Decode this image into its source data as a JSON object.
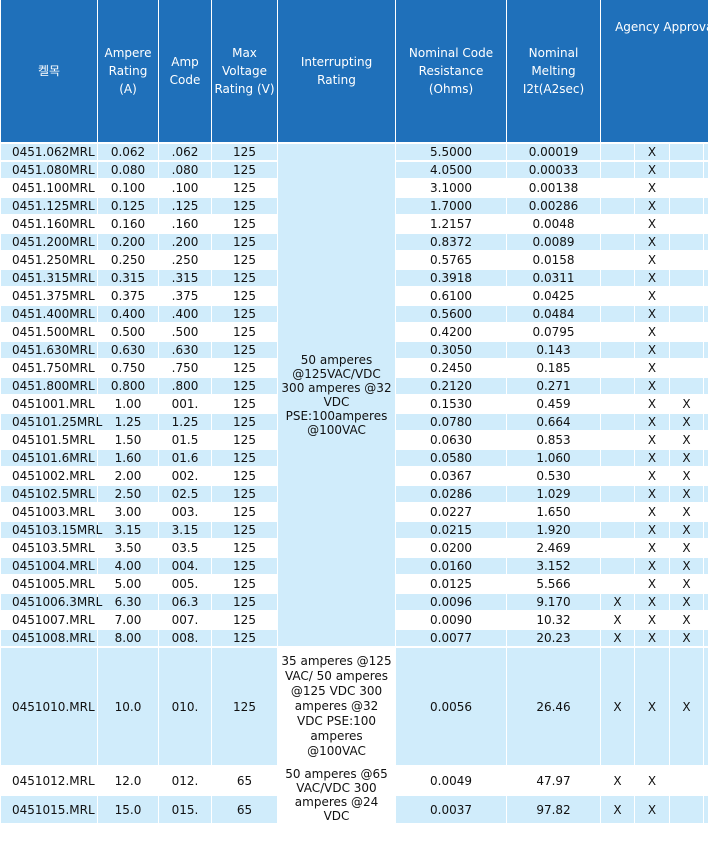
{
  "headers": {
    "part": "켈목",
    "ampere_rating": "Ampere Rating (A)",
    "amp_code": "Amp Code",
    "max_voltage": "Max Voltage Rating (V)",
    "interrupting": "Interrupting Rating",
    "resistance": "Nominal Code Resistance (Ohms)",
    "melting": "Nominal Melting I2t(A2sec)",
    "agency": "Agency Approvals"
  },
  "interrupting_ratings": [
    "50 amperes @125VAC/VDC 300 amperes @32 VDC PSE:100amperes @100VAC",
    "35 amperes @125 VAC/ 50 amperes @125 VDC 300 amperes @32 VDC PSE:100 amperes @100VAC",
    "50 amperes @65 VAC/VDC 300 amperes @24 VDC"
  ],
  "rows": [
    {
      "part": "0451.062MRL",
      "ampere": "0.062",
      "code": ".062",
      "voltage": "125",
      "resistance": "5.5000",
      "melting": "0.00019",
      "a1": "",
      "a2": "X",
      "a3": "",
      "a4": "X"
    },
    {
      "part": "0451.080MRL",
      "ampere": "0.080",
      "code": ".080",
      "voltage": "125",
      "resistance": "4.0500",
      "melting": "0.00033",
      "a1": "",
      "a2": "X",
      "a3": "",
      "a4": "X"
    },
    {
      "part": "0451.100MRL",
      "ampere": "0.100",
      "code": ".100",
      "voltage": "125",
      "resistance": "3.1000",
      "melting": "0.00138",
      "a1": "",
      "a2": "X",
      "a3": "",
      "a4": "X"
    },
    {
      "part": "0451.125MRL",
      "ampere": "0.125",
      "code": ".125",
      "voltage": "125",
      "resistance": "1.7000",
      "melting": "0.00286",
      "a1": "",
      "a2": "X",
      "a3": "",
      "a4": "X"
    },
    {
      "part": "0451.160MRL",
      "ampere": "0.160",
      "code": ".160",
      "voltage": "125",
      "resistance": "1.2157",
      "melting": "0.0048",
      "a1": "",
      "a2": "X",
      "a3": "",
      "a4": "X"
    },
    {
      "part": "0451.200MRL",
      "ampere": "0.200",
      "code": ".200",
      "voltage": "125",
      "resistance": "0.8372",
      "melting": "0.0089",
      "a1": "",
      "a2": "X",
      "a3": "",
      "a4": "X"
    },
    {
      "part": "0451.250MRL",
      "ampere": "0.250",
      "code": ".250",
      "voltage": "125",
      "resistance": "0.5765",
      "melting": "0.0158",
      "a1": "",
      "a2": "X",
      "a3": "",
      "a4": "X"
    },
    {
      "part": "0451.315MRL",
      "ampere": "0.315",
      "code": ".315",
      "voltage": "125",
      "resistance": "0.3918",
      "melting": "0.0311",
      "a1": "",
      "a2": "X",
      "a3": "",
      "a4": "X"
    },
    {
      "part": "0451.375MRL",
      "ampere": "0.375",
      "code": ".375",
      "voltage": "125",
      "resistance": "0.6100",
      "melting": "0.0425",
      "a1": "",
      "a2": "X",
      "a3": "",
      "a4": "X"
    },
    {
      "part": "0451.400MRL",
      "ampere": "0.400",
      "code": ".400",
      "voltage": "125",
      "resistance": "0.5600",
      "melting": "0.0484",
      "a1": "",
      "a2": "X",
      "a3": "",
      "a4": "X"
    },
    {
      "part": "0451.500MRL",
      "ampere": "0.500",
      "code": ".500",
      "voltage": "125",
      "resistance": "0.4200",
      "melting": "0.0795",
      "a1": "",
      "a2": "X",
      "a3": "",
      "a4": "X"
    },
    {
      "part": "0451.630MRL",
      "ampere": "0.630",
      "code": ".630",
      "voltage": "125",
      "resistance": "0.3050",
      "melting": "0.143",
      "a1": "",
      "a2": "X",
      "a3": "",
      "a4": "X"
    },
    {
      "part": "0451.750MRL",
      "ampere": "0.750",
      "code": ".750",
      "voltage": "125",
      "resistance": "0.2450",
      "melting": "0.185",
      "a1": "",
      "a2": "X",
      "a3": "",
      "a4": "X"
    },
    {
      "part": "0451.800MRL",
      "ampere": "0.800",
      "code": ".800",
      "voltage": "125",
      "resistance": "0.2120",
      "melting": "0.271",
      "a1": "",
      "a2": "X",
      "a3": "",
      "a4": "X"
    },
    {
      "part": "0451001.MRL",
      "ampere": "1.00",
      "code": "001.",
      "voltage": "125",
      "resistance": "0.1530",
      "melting": "0.459",
      "a1": "",
      "a2": "X",
      "a3": "X",
      "a4": "X"
    },
    {
      "part": "045101.25MRL",
      "ampere": "1.25",
      "code": "1.25",
      "voltage": "125",
      "resistance": "0.0780",
      "melting": "0.664",
      "a1": "",
      "a2": "X",
      "a3": "X",
      "a4": "X"
    },
    {
      "part": "045101.5MRL",
      "ampere": "1.50",
      "code": "01.5",
      "voltage": "125",
      "resistance": "0.0630",
      "melting": "0.853",
      "a1": "",
      "a2": "X",
      "a3": "X",
      "a4": "X"
    },
    {
      "part": "045101.6MRL",
      "ampere": "1.60",
      "code": "01.6",
      "voltage": "125",
      "resistance": "0.0580",
      "melting": "1.060",
      "a1": "",
      "a2": "X",
      "a3": "X",
      "a4": "X"
    },
    {
      "part": "0451002.MRL",
      "ampere": "2.00",
      "code": "002.",
      "voltage": "125",
      "resistance": "0.0367",
      "melting": "0.530",
      "a1": "",
      "a2": "X",
      "a3": "X",
      "a4": "X"
    },
    {
      "part": "045102.5MRL",
      "ampere": "2.50",
      "code": "02.5",
      "voltage": "125",
      "resistance": "0.0286",
      "melting": "1.029",
      "a1": "",
      "a2": "X",
      "a3": "X",
      "a4": "X"
    },
    {
      "part": "0451003.MRL",
      "ampere": "3.00",
      "code": "003.",
      "voltage": "125",
      "resistance": "0.0227",
      "melting": "1.650",
      "a1": "",
      "a2": "X",
      "a3": "X",
      "a4": "X"
    },
    {
      "part": "045103.15MRL",
      "ampere": "3.15",
      "code": "3.15",
      "voltage": "125",
      "resistance": "0.0215",
      "melting": "1.920",
      "a1": "",
      "a2": "X",
      "a3": "X",
      "a4": "X"
    },
    {
      "part": "045103.5MRL",
      "ampere": "3.50",
      "code": "03.5",
      "voltage": "125",
      "resistance": "0.0200",
      "melting": "2.469",
      "a1": "",
      "a2": "X",
      "a3": "X",
      "a4": "X"
    },
    {
      "part": "0451004.MRL",
      "ampere": "4.00",
      "code": "004.",
      "voltage": "125",
      "resistance": "0.0160",
      "melting": "3.152",
      "a1": "",
      "a2": "X",
      "a3": "X",
      "a4": "X"
    },
    {
      "part": "0451005.MRL",
      "ampere": "5.00",
      "code": "005.",
      "voltage": "125",
      "resistance": "0.0125",
      "melting": "5.566",
      "a1": "",
      "a2": "X",
      "a3": "X",
      "a4": "X"
    },
    {
      "part": "0451006.3MRL",
      "ampere": "6.30",
      "code": "06.3",
      "voltage": "125",
      "resistance": "0.0096",
      "melting": "9.170",
      "a1": "X",
      "a2": "X",
      "a3": "X",
      "a4": ""
    },
    {
      "part": "0451007.MRL",
      "ampere": "7.00",
      "code": "007.",
      "voltage": "125",
      "resistance": "0.0090",
      "melting": "10.32",
      "a1": "X",
      "a2": "X",
      "a3": "X",
      "a4": ""
    },
    {
      "part": "0451008.MRL",
      "ampere": "8.00",
      "code": "008.",
      "voltage": "125",
      "resistance": "0.0077",
      "melting": "20.23",
      "a1": "X",
      "a2": "X",
      "a3": "X",
      "a4": ""
    },
    {
      "part": "0451010.MRL",
      "ampere": "10.0",
      "code": "010.",
      "voltage": "125",
      "resistance": "0.0056",
      "melting": "26.46",
      "a1": "X",
      "a2": "X",
      "a3": "X",
      "a4": ""
    },
    {
      "part": "0451012.MRL",
      "ampere": "12.0",
      "code": "012.",
      "voltage": "65",
      "resistance": "0.0049",
      "melting": "47.97",
      "a1": "X",
      "a2": "X",
      "a3": "",
      "a4": ""
    },
    {
      "part": "0451015.MRL",
      "ampere": "15.0",
      "code": "015.",
      "voltage": "65",
      "resistance": "0.0037",
      "melting": "97.82",
      "a1": "X",
      "a2": "X",
      "a3": "",
      "a4": ""
    }
  ]
}
